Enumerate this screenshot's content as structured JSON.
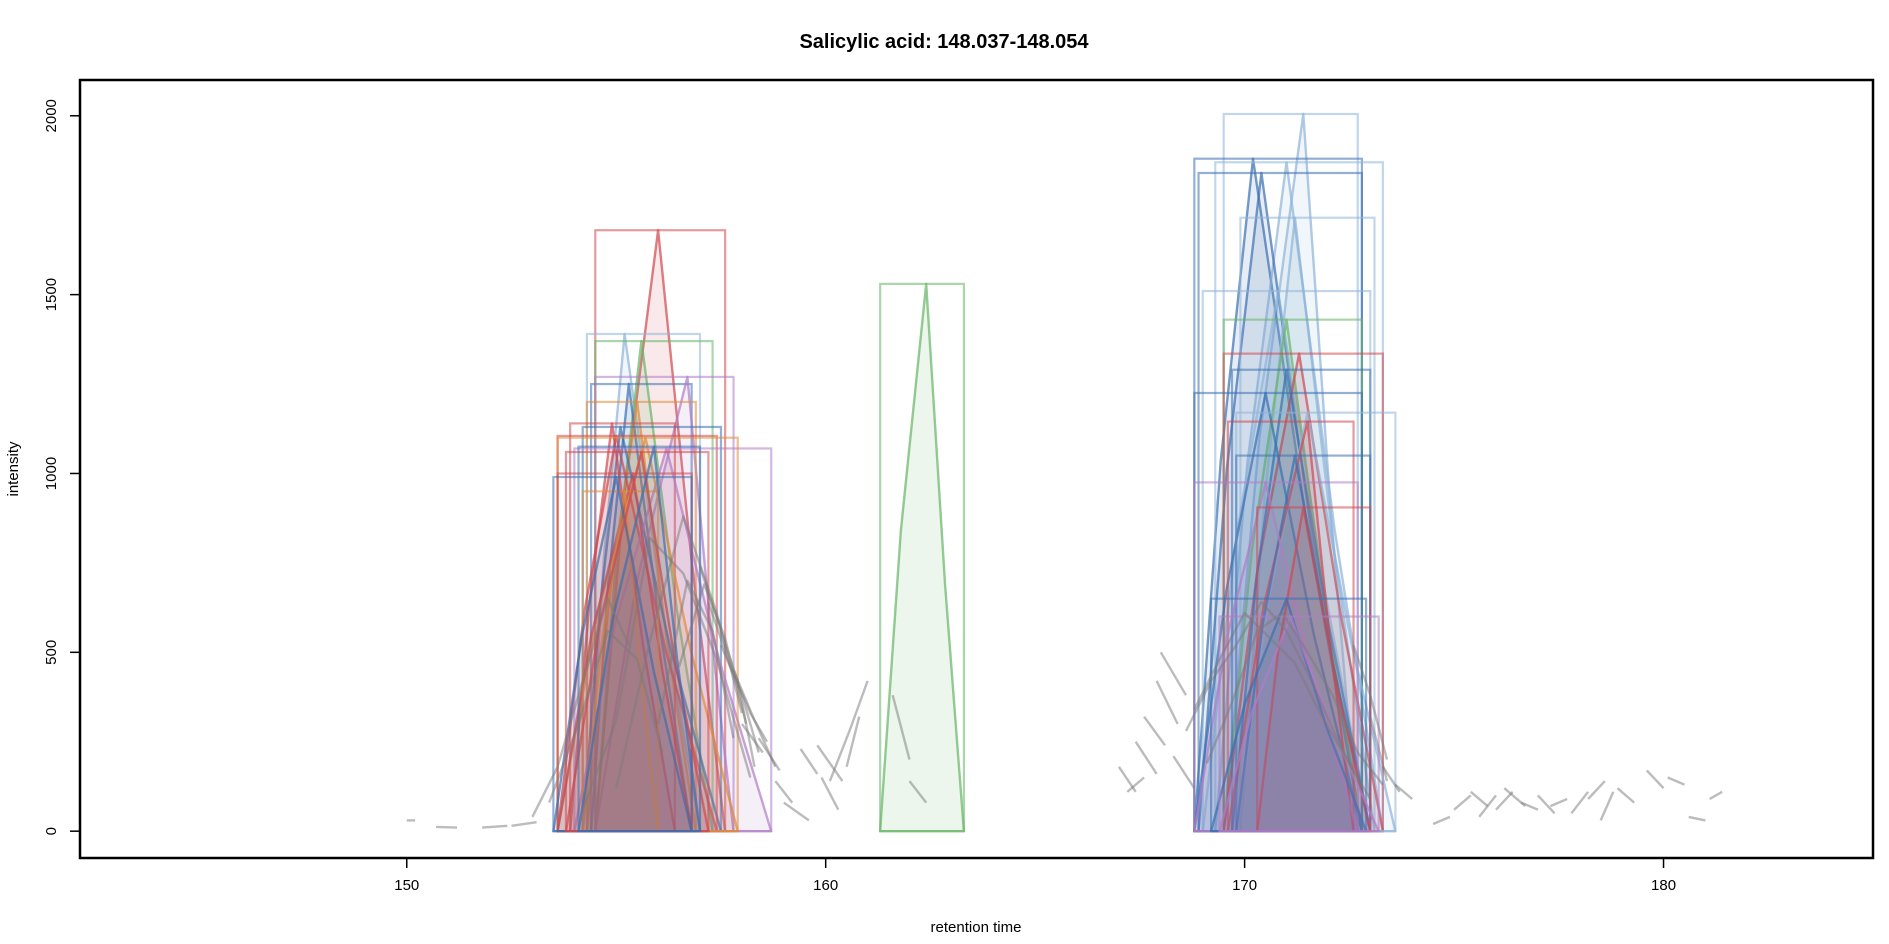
{
  "chart_data": {
    "type": "line",
    "title": "Salicylic acid: 148.037-148.054",
    "xlabel": "retention time",
    "ylabel": "intensity",
    "xlim": [
      142.2,
      185.0
    ],
    "ylim": [
      -75,
      2100
    ],
    "x_ticks": [
      150,
      160,
      170,
      180
    ],
    "y_ticks": [
      0,
      500,
      1000,
      1500,
      2000
    ],
    "grid": false,
    "legend": "none",
    "colors": {
      "red": "#d0474f",
      "blue": "#3a6fb0",
      "lightblue": "#8fb4d8",
      "green": "#66b566",
      "orange": "#e08a3a",
      "purple": "#b07cc6",
      "gray": "#7a7a7a"
    },
    "peaks": [
      {
        "x0": 154.5,
        "x1": 157.6,
        "apex_x": 156.0,
        "apex": 1680,
        "color": "red"
      },
      {
        "x0": 154.3,
        "x1": 157.0,
        "apex_x": 155.2,
        "apex": 1390,
        "color": "lightblue"
      },
      {
        "x0": 154.5,
        "x1": 157.3,
        "apex_x": 155.6,
        "apex": 1370,
        "color": "green"
      },
      {
        "x0": 154.4,
        "x1": 156.8,
        "apex_x": 155.3,
        "apex": 1250,
        "color": "blue"
      },
      {
        "x0": 154.5,
        "x1": 157.8,
        "apex_x": 156.7,
        "apex": 1270,
        "color": "purple"
      },
      {
        "x0": 154.3,
        "x1": 156.9,
        "apex_x": 155.5,
        "apex": 1200,
        "color": "orange"
      },
      {
        "x0": 154.2,
        "x1": 157.5,
        "apex_x": 155.1,
        "apex": 1130,
        "color": "blue"
      },
      {
        "x0": 153.6,
        "x1": 157.4,
        "apex_x": 155.0,
        "apex": 1105,
        "color": "red"
      },
      {
        "x0": 153.9,
        "x1": 156.4,
        "apex_x": 154.9,
        "apex": 1140,
        "color": "red"
      },
      {
        "x0": 154.0,
        "x1": 158.7,
        "apex_x": 156.2,
        "apex": 1070,
        "color": "purple"
      },
      {
        "x0": 153.6,
        "x1": 157.9,
        "apex_x": 155.7,
        "apex": 1100,
        "color": "orange"
      },
      {
        "x0": 153.6,
        "x1": 156.8,
        "apex_x": 155.4,
        "apex": 1000,
        "color": "red"
      },
      {
        "x0": 154.2,
        "x1": 156.0,
        "apex_x": 155.2,
        "apex": 950,
        "color": "orange"
      },
      {
        "x0": 153.5,
        "x1": 156.8,
        "apex_x": 155.0,
        "apex": 990,
        "color": "blue"
      },
      {
        "x0": 153.8,
        "x1": 157.2,
        "apex_x": 155.6,
        "apex": 1060,
        "color": "red"
      },
      {
        "x0": 154.1,
        "x1": 157.0,
        "apex_x": 155.9,
        "apex": 1075,
        "color": "blue"
      },
      {
        "x0": 161.3,
        "x1": 163.3,
        "apex_x": 162.4,
        "apex": 1530,
        "color": "green"
      },
      {
        "x0": 169.5,
        "x1": 172.7,
        "apex_x": 171.4,
        "apex": 2005,
        "color": "lightblue"
      },
      {
        "x0": 168.8,
        "x1": 172.8,
        "apex_x": 170.2,
        "apex": 1880,
        "color": "blue"
      },
      {
        "x0": 169.3,
        "x1": 173.3,
        "apex_x": 171.0,
        "apex": 1870,
        "color": "lightblue"
      },
      {
        "x0": 168.9,
        "x1": 172.8,
        "apex_x": 170.4,
        "apex": 1840,
        "color": "blue"
      },
      {
        "x0": 169.9,
        "x1": 173.1,
        "apex_x": 171.2,
        "apex": 1715,
        "color": "lightblue"
      },
      {
        "x0": 169.0,
        "x1": 173.0,
        "apex_x": 170.8,
        "apex": 1510,
        "color": "lightblue"
      },
      {
        "x0": 169.5,
        "x1": 172.8,
        "apex_x": 171.0,
        "apex": 1430,
        "color": "green"
      },
      {
        "x0": 169.5,
        "x1": 173.3,
        "apex_x": 171.3,
        "apex": 1335,
        "color": "red"
      },
      {
        "x0": 169.7,
        "x1": 173.0,
        "apex_x": 171.0,
        "apex": 1290,
        "color": "blue"
      },
      {
        "x0": 168.8,
        "x1": 172.8,
        "apex_x": 170.5,
        "apex": 1225,
        "color": "blue"
      },
      {
        "x0": 169.8,
        "x1": 173.6,
        "apex_x": 171.5,
        "apex": 1170,
        "color": "lightblue"
      },
      {
        "x0": 169.6,
        "x1": 172.6,
        "apex_x": 171.5,
        "apex": 1145,
        "color": "red"
      },
      {
        "x0": 169.8,
        "x1": 173.0,
        "apex_x": 171.2,
        "apex": 1050,
        "color": "blue"
      },
      {
        "x0": 168.8,
        "x1": 172.7,
        "apex_x": 170.5,
        "apex": 975,
        "color": "purple"
      },
      {
        "x0": 170.3,
        "x1": 173.0,
        "apex_x": 171.4,
        "apex": 905,
        "color": "red"
      },
      {
        "x0": 169.2,
        "x1": 172.9,
        "apex_x": 171.0,
        "apex": 650,
        "color": "blue"
      },
      {
        "x0": 169.4,
        "x1": 173.2,
        "apex_x": 171.1,
        "apex": 600,
        "color": "purple"
      }
    ],
    "traces": [
      {
        "x": [
          150.0,
          150.2
        ],
        "y": [
          30,
          30
        ]
      },
      {
        "x": [
          150.7,
          151.2
        ],
        "y": [
          12,
          10
        ]
      },
      {
        "x": [
          151.8,
          152.4
        ],
        "y": [
          10,
          15
        ]
      },
      {
        "x": [
          152.5,
          153.1
        ],
        "y": [
          15,
          25
        ]
      },
      {
        "x": [
          153.0,
          153.6,
          154.2,
          154.8,
          155.3
        ],
        "y": [
          40,
          180,
          420,
          650,
          520
        ]
      },
      {
        "x": [
          153.4,
          154.1,
          154.8,
          155.5,
          156.1
        ],
        "y": [
          80,
          300,
          560,
          480,
          220
        ]
      },
      {
        "x": [
          154.2,
          155.0,
          155.8,
          156.6,
          157.4,
          158.2
        ],
        "y": [
          60,
          310,
          820,
          720,
          480,
          150
        ]
      },
      {
        "x": [
          155.0,
          155.8,
          156.6,
          157.4,
          158.0
        ],
        "y": [
          120,
          530,
          880,
          610,
          330
        ]
      },
      {
        "x": [
          156.0,
          156.7,
          157.3,
          157.8
        ],
        "y": [
          300,
          700,
          560,
          260
        ]
      },
      {
        "x": [
          156.5,
          157.1,
          157.6,
          158.1
        ],
        "y": [
          460,
          690,
          540,
          300
        ]
      },
      {
        "x": [
          157.0,
          157.5,
          157.9,
          158.3
        ],
        "y": [
          740,
          560,
          420,
          180
        ]
      },
      {
        "x": [
          157.2,
          157.7,
          158.2,
          158.6
        ],
        "y": [
          640,
          470,
          330,
          250
        ]
      },
      {
        "x": [
          157.5,
          158.0,
          158.4
        ],
        "y": [
          520,
          380,
          220
        ]
      },
      {
        "x": [
          157.8,
          158.3,
          158.8
        ],
        "y": [
          450,
          310,
          180
        ]
      },
      {
        "x": [
          158.0,
          158.5
        ],
        "y": [
          300,
          220
        ]
      },
      {
        "x": [
          158.4,
          158.9
        ],
        "y": [
          260,
          170
        ]
      },
      {
        "x": [
          158.8,
          159.2
        ],
        "y": [
          140,
          80
        ]
      },
      {
        "x": [
          159.0,
          159.6
        ],
        "y": [
          80,
          30
        ]
      },
      {
        "x": [
          159.4,
          159.8
        ],
        "y": [
          230,
          160
        ]
      },
      {
        "x": [
          159.9,
          160.3
        ],
        "y": [
          150,
          60
        ]
      },
      {
        "x": [
          159.8,
          160.4
        ],
        "y": [
          240,
          140
        ]
      },
      {
        "x": [
          160.1,
          160.6,
          161.0
        ],
        "y": [
          140,
          290,
          420
        ]
      },
      {
        "x": [
          160.5,
          160.8
        ],
        "y": [
          180,
          320
        ]
      },
      {
        "x": [
          161.6,
          162.0
        ],
        "y": [
          380,
          200
        ]
      },
      {
        "x": [
          162.0,
          162.4
        ],
        "y": [
          140,
          80
        ]
      },
      {
        "x": [
          167.0,
          167.4
        ],
        "y": [
          180,
          110
        ]
      },
      {
        "x": [
          167.2,
          167.6
        ],
        "y": [
          110,
          150
        ]
      },
      {
        "x": [
          167.4,
          167.9
        ],
        "y": [
          250,
          160
        ]
      },
      {
        "x": [
          167.6,
          168.1
        ],
        "y": [
          320,
          240
        ]
      },
      {
        "x": [
          167.9,
          168.4
        ],
        "y": [
          420,
          300
        ]
      },
      {
        "x": [
          168.0,
          168.6
        ],
        "y": [
          500,
          380
        ]
      },
      {
        "x": [
          168.3,
          168.8
        ],
        "y": [
          210,
          120
        ]
      },
      {
        "x": [
          168.6,
          169.2,
          169.8,
          170.4,
          171.0,
          171.6,
          172.2,
          172.8
        ],
        "y": [
          280,
          420,
          520,
          640,
          560,
          420,
          260,
          120
        ]
      },
      {
        "x": [
          168.8,
          169.4,
          170.0,
          170.6,
          171.2,
          171.8,
          172.4,
          173.0
        ],
        "y": [
          340,
          480,
          610,
          540,
          470,
          330,
          210,
          90
        ]
      },
      {
        "x": [
          169.1,
          169.7,
          170.3,
          170.9,
          171.5,
          172.1,
          172.7,
          173.3
        ],
        "y": [
          190,
          360,
          560,
          610,
          500,
          380,
          220,
          130
        ]
      },
      {
        "x": [
          172.6,
          173.0,
          173.4
        ],
        "y": [
          520,
          380,
          200
        ]
      },
      {
        "x": [
          173.0,
          173.4
        ],
        "y": [
          320,
          140
        ]
      },
      {
        "x": [
          173.3,
          173.7
        ],
        "y": [
          180,
          110
        ]
      },
      {
        "x": [
          173.6,
          174.0
        ],
        "y": [
          130,
          90
        ]
      },
      {
        "x": [
          174.5,
          174.9
        ],
        "y": [
          20,
          40
        ]
      },
      {
        "x": [
          175.0,
          175.4
        ],
        "y": [
          60,
          100
        ]
      },
      {
        "x": [
          175.4,
          175.8
        ],
        "y": [
          110,
          70
        ]
      },
      {
        "x": [
          175.6,
          176.0
        ],
        "y": [
          40,
          100
        ]
      },
      {
        "x": [
          176.0,
          176.4
        ],
        "y": [
          60,
          110
        ]
      },
      {
        "x": [
          176.2,
          176.7
        ],
        "y": [
          120,
          70
        ]
      },
      {
        "x": [
          176.6,
          177.0
        ],
        "y": [
          80,
          60
        ]
      },
      {
        "x": [
          177.0,
          177.4
        ],
        "y": [
          100,
          50
        ]
      },
      {
        "x": [
          177.3,
          177.7
        ],
        "y": [
          70,
          90
        ]
      },
      {
        "x": [
          177.8,
          178.2
        ],
        "y": [
          50,
          110
        ]
      },
      {
        "x": [
          178.2,
          178.6
        ],
        "y": [
          90,
          140
        ]
      },
      {
        "x": [
          178.5,
          178.8
        ],
        "y": [
          30,
          110
        ]
      },
      {
        "x": [
          178.9,
          179.3
        ],
        "y": [
          120,
          80
        ]
      },
      {
        "x": [
          179.6,
          180.0
        ],
        "y": [
          170,
          120
        ]
      },
      {
        "x": [
          180.1,
          180.5
        ],
        "y": [
          150,
          130
        ]
      },
      {
        "x": [
          180.6,
          181.0
        ],
        "y": [
          40,
          30
        ]
      },
      {
        "x": [
          181.1,
          181.4
        ],
        "y": [
          90,
          110
        ]
      }
    ]
  }
}
